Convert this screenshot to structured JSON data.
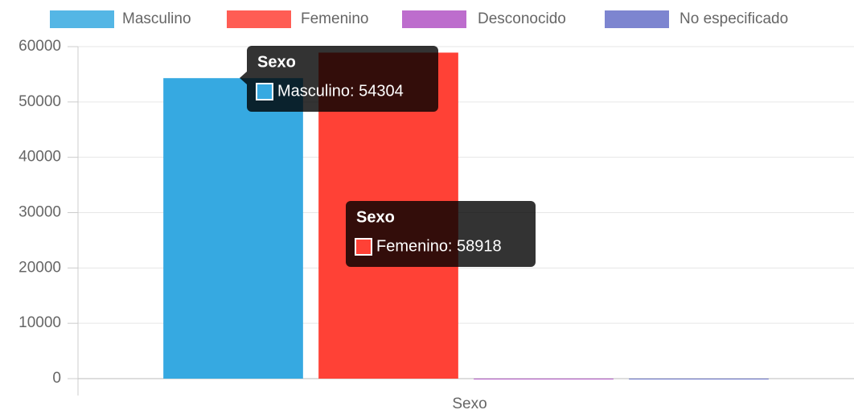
{
  "chart_data": {
    "type": "bar",
    "categories": [
      "Sexo"
    ],
    "x_label": "Sexo",
    "series": [
      {
        "name": "Masculino",
        "color": "#36a9e1",
        "values": [
          54304
        ]
      },
      {
        "name": "Femenino",
        "color": "#ff4136",
        "values": [
          58918
        ]
      },
      {
        "name": "Desconocido",
        "color": "#b154c4",
        "values": [
          0
        ]
      },
      {
        "name": "No especificado",
        "color": "#6670c8",
        "values": [
          0
        ]
      }
    ],
    "ylim": [
      0,
      60000
    ],
    "yticks": [
      0,
      10000,
      20000,
      30000,
      40000,
      50000,
      60000
    ],
    "grid": true,
    "legend": "top",
    "tooltips": [
      {
        "title": "Sexo",
        "label": "Masculino: 54304"
      },
      {
        "title": "Sexo",
        "label": "Femenino: 58918"
      }
    ]
  }
}
